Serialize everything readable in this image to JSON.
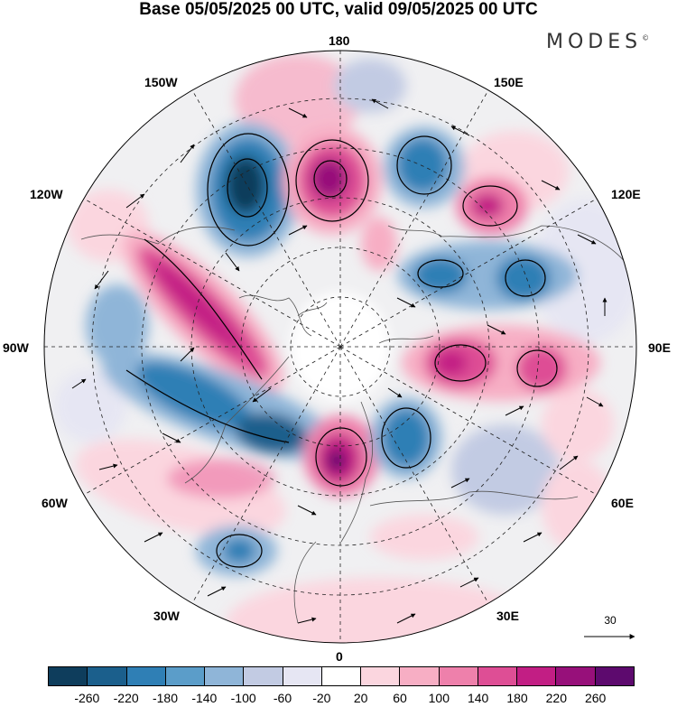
{
  "title": "Base 05/05/2025 00 UTC, valid 09/05/2025 00 UTC",
  "brand": "MODES",
  "brand_mark": "©",
  "longitude_labels": {
    "top": "180",
    "top_right": "150E",
    "top_left": "150W",
    "upper_right": "120E",
    "upper_left": "120W",
    "right": "90E",
    "left": "90W",
    "lower_right": "60E",
    "lower_left": "60W",
    "bottom_right": "30E",
    "bottom_left": "30W",
    "bottom": "0"
  },
  "reference_vector": "30",
  "colorbar": {
    "colors": [
      "#0e3d5c",
      "#1b5f8c",
      "#2f7fb5",
      "#5b9dc9",
      "#8fb5d8",
      "#c2cbe3",
      "#e6e6f3",
      "#ffffff",
      "#fbd6df",
      "#f7aec4",
      "#ee80ab",
      "#de4e95",
      "#c21e84",
      "#97107a",
      "#5d0a6e"
    ],
    "labels": [
      "-260",
      "-220",
      "-180",
      "-140",
      "-100",
      "-60",
      "-20",
      "20",
      "60",
      "100",
      "140",
      "180",
      "220",
      "260"
    ]
  }
}
